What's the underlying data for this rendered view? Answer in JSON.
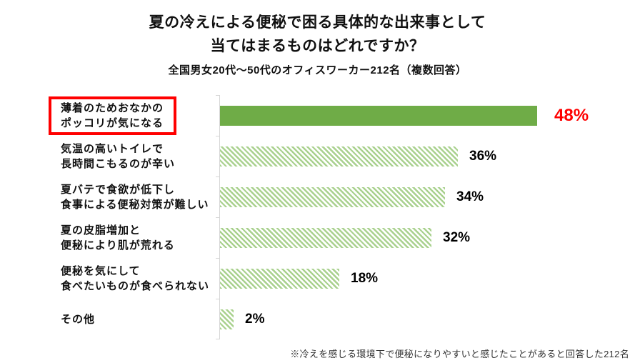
{
  "header": {
    "title_line1": "夏の冷えによる便秘で困る具体的な出来事として",
    "title_line2": "当てはまるものはどれですか？",
    "subtitle": "全国男女20代～50代のオフィスワーカー212名（複数回答）"
  },
  "chart_data": {
    "type": "bar",
    "orientation": "horizontal",
    "title": "夏の冷えによる便秘で困る具体的な出来事として当てはまるものはどれですか？",
    "subtitle": "全国男女20代～50代のオフィスワーカー212名（複数回答）",
    "categories": [
      "薄着のためおなかの\nポッコリが気になる",
      "気温の高いトイレで\n長時間こもるのが辛い",
      "夏バテで食欲が低下し\n食事による便秘対策が難しい",
      "夏の皮脂増加と\n便秘により肌が荒れる",
      "便秘を気にして\n食べたいものが食べられない",
      "その他"
    ],
    "values": [
      48,
      36,
      34,
      32,
      18,
      2
    ],
    "value_labels": [
      "48%",
      "36%",
      "34%",
      "32%",
      "18%",
      "2%"
    ],
    "unit": "%",
    "xlim": [
      0,
      60
    ],
    "grid": "off",
    "legend": "none",
    "highlighted_category_index": 0,
    "colors": {
      "solid_green": "#6FAC47",
      "stripe_green": "#A9D18E",
      "highlight_red": "#FF0000"
    }
  },
  "footer": {
    "note": "※冷えを感じる環境下で便秘になりやすいと感じたことがあると回答した212名"
  }
}
